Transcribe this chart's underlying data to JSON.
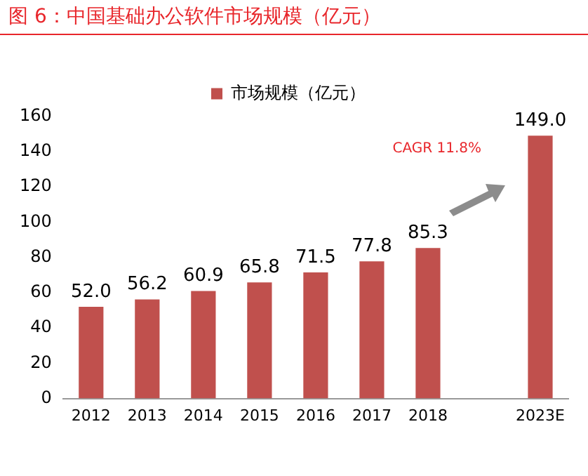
{
  "chart_data": {
    "type": "bar",
    "title": "图 6：中国基础办公软件市场规模（亿元）",
    "categories": [
      "2012",
      "2013",
      "2014",
      "2015",
      "2016",
      "2017",
      "2018",
      null,
      "2023E"
    ],
    "series": [
      {
        "name": "市场规模（亿元）",
        "color": "#c0504d",
        "values": [
          52.0,
          56.2,
          60.9,
          65.8,
          71.5,
          77.8,
          85.3,
          null,
          149.0
        ],
        "value_labels": [
          "52.0",
          "56.2",
          "60.9",
          "65.8",
          "71.5",
          "77.8",
          "85.3",
          null,
          "149.0"
        ]
      }
    ],
    "ylim": [
      0,
      160
    ],
    "yticks": [
      0,
      20,
      40,
      60,
      80,
      100,
      120,
      140,
      160
    ],
    "grid": false,
    "legend": "top",
    "annotations": [
      "CAGR 11.8%"
    ]
  }
}
